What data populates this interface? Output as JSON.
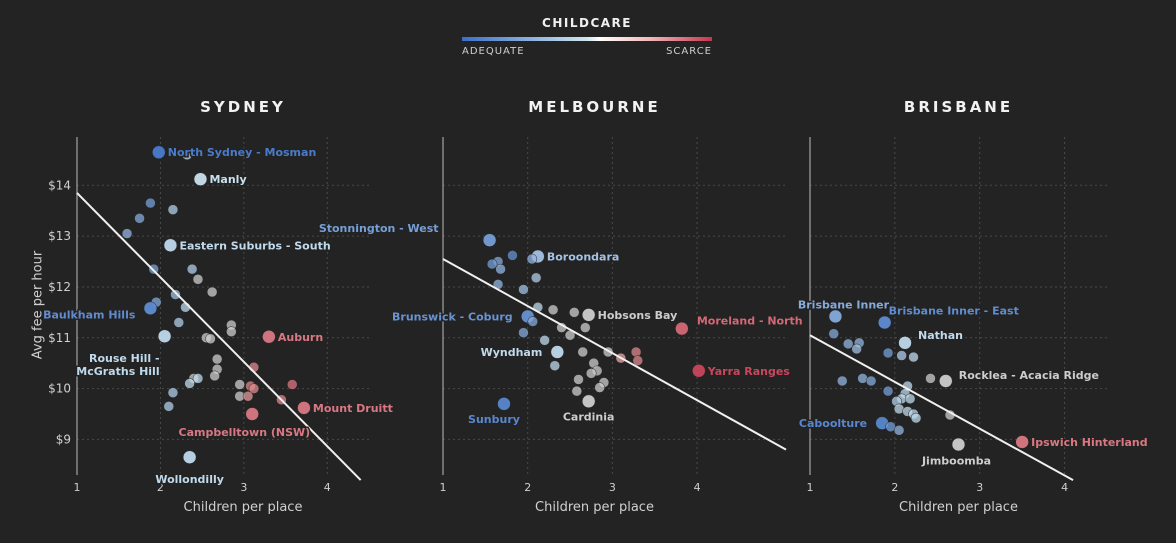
{
  "legend": {
    "title": "CHILDCARE",
    "low": "ADEQUATE",
    "high": "SCARCE",
    "low_color": "#3b6fc7",
    "mid_color": "#cfe6f0",
    "high_color": "#c43650"
  },
  "ylabel": "Avg fee per hour",
  "xlabel": "Children per place",
  "chart_data": [
    {
      "type": "scatter",
      "title": "SYDNEY",
      "xlabel": "Children per place",
      "ylabel": "Avg fee per hour",
      "xlim": [
        1,
        4.5
      ],
      "ylim": [
        8.3,
        14.95
      ],
      "xticks": [
        1,
        2,
        3,
        4
      ],
      "yticks": [
        9,
        10,
        11,
        12,
        13,
        14
      ],
      "ytick_labels": [
        "$9",
        "$10",
        "$11",
        "$12",
        "$13",
        "$14"
      ],
      "trend": [
        [
          1,
          13.85
        ],
        [
          4.4,
          8.2
        ]
      ],
      "points": [
        {
          "x": 1.98,
          "y": 14.65,
          "s": 0.05,
          "label": "North Sydney - Mosman",
          "big": true
        },
        {
          "x": 2.32,
          "y": 14.6,
          "s": 0.45
        },
        {
          "x": 2.48,
          "y": 14.12,
          "s": 0.48,
          "label": "Manly",
          "big": true
        },
        {
          "x": 1.88,
          "y": 13.65,
          "s": 0.2
        },
        {
          "x": 2.15,
          "y": 13.52,
          "s": 0.4
        },
        {
          "x": 1.75,
          "y": 13.35,
          "s": 0.25
        },
        {
          "x": 1.6,
          "y": 13.05,
          "s": 0.3
        },
        {
          "x": 2.12,
          "y": 12.82,
          "s": 0.45,
          "label": "Eastern Suburbs - South",
          "big": true
        },
        {
          "x": 1.92,
          "y": 12.35,
          "s": 0.22
        },
        {
          "x": 2.38,
          "y": 12.35,
          "s": 0.4
        },
        {
          "x": 2.45,
          "y": 12.15,
          "s": 0.5
        },
        {
          "x": 2.62,
          "y": 11.9,
          "s": 0.55
        },
        {
          "x": 2.18,
          "y": 11.85,
          "s": 0.35
        },
        {
          "x": 1.95,
          "y": 11.7,
          "s": 0.25
        },
        {
          "x": 2.3,
          "y": 11.6,
          "s": 0.45
        },
        {
          "x": 1.88,
          "y": 11.58,
          "s": 0.12,
          "label": "Baulkham Hills",
          "big": true,
          "anchor": "left",
          "dx": -6,
          "dy": 6
        },
        {
          "x": 2.22,
          "y": 11.3,
          "s": 0.4
        },
        {
          "x": 2.85,
          "y": 11.25,
          "s": 0.55
        },
        {
          "x": 2.85,
          "y": 11.12,
          "s": 0.55
        },
        {
          "x": 2.05,
          "y": 11.03,
          "s": 0.45,
          "label": "Rouse Hill -\nMcGraths Hill",
          "big": true,
          "anchor": "left",
          "dx": 4,
          "dy": 22
        },
        {
          "x": 2.55,
          "y": 11.0,
          "s": 0.55
        },
        {
          "x": 2.6,
          "y": 10.98,
          "s": 0.55
        },
        {
          "x": 3.3,
          "y": 11.02,
          "s": 0.8,
          "label": "Auburn",
          "big": true
        },
        {
          "x": 2.68,
          "y": 10.58,
          "s": 0.55
        },
        {
          "x": 2.68,
          "y": 10.38,
          "s": 0.55
        },
        {
          "x": 3.12,
          "y": 10.42,
          "s": 0.75
        },
        {
          "x": 2.65,
          "y": 10.25,
          "s": 0.55
        },
        {
          "x": 2.4,
          "y": 10.2,
          "s": 0.5
        },
        {
          "x": 2.45,
          "y": 10.2,
          "s": 0.45
        },
        {
          "x": 2.35,
          "y": 10.1,
          "s": 0.45
        },
        {
          "x": 2.95,
          "y": 10.08,
          "s": 0.6
        },
        {
          "x": 3.08,
          "y": 10.05,
          "s": 0.75
        },
        {
          "x": 3.12,
          "y": 10.0,
          "s": 0.75
        },
        {
          "x": 3.58,
          "y": 10.08,
          "s": 0.8
        },
        {
          "x": 2.95,
          "y": 9.85,
          "s": 0.6
        },
        {
          "x": 3.05,
          "y": 9.85,
          "s": 0.7
        },
        {
          "x": 3.45,
          "y": 9.78,
          "s": 0.75
        },
        {
          "x": 2.15,
          "y": 9.92,
          "s": 0.4
        },
        {
          "x": 2.1,
          "y": 9.65,
          "s": 0.4
        },
        {
          "x": 3.72,
          "y": 9.62,
          "s": 0.8,
          "label": "Mount Druitt",
          "big": true
        },
        {
          "x": 3.1,
          "y": 9.5,
          "s": 0.8,
          "label": "Campbelltown (NSW)",
          "big": true,
          "anchor": "right",
          "dx": 58,
          "dy": 18
        },
        {
          "x": 2.35,
          "y": 8.65,
          "s": 0.45,
          "label": "Wollondilly",
          "big": true,
          "anchor": "middle",
          "dx": 0,
          "dy": 22
        }
      ]
    },
    {
      "type": "scatter",
      "title": "MELBOURNE",
      "xlabel": "Children per place",
      "ylabel": "Avg fee per hour",
      "xlim": [
        1,
        5.05
      ],
      "ylim": [
        8.3,
        14.95
      ],
      "xticks": [
        1,
        2,
        3,
        4
      ],
      "yticks": [
        9,
        10,
        11,
        12,
        13,
        14
      ],
      "trend": [
        [
          1,
          12.55
        ],
        [
          5.05,
          8.8
        ]
      ],
      "points": [
        {
          "x": 1.55,
          "y": 12.92,
          "s": 0.2,
          "label": "Stonnington - West",
          "big": true,
          "anchor": "left",
          "dx": -42,
          "dy": -12
        },
        {
          "x": 1.82,
          "y": 12.62,
          "s": 0.15
        },
        {
          "x": 2.12,
          "y": 12.6,
          "s": 0.35,
          "label": "Boroondara",
          "big": true
        },
        {
          "x": 2.05,
          "y": 12.55,
          "s": 0.3
        },
        {
          "x": 1.65,
          "y": 12.5,
          "s": 0.25
        },
        {
          "x": 1.58,
          "y": 12.45,
          "s": 0.2
        },
        {
          "x": 1.68,
          "y": 12.35,
          "s": 0.3
        },
        {
          "x": 2.1,
          "y": 12.18,
          "s": 0.4
        },
        {
          "x": 1.65,
          "y": 12.05,
          "s": 0.3
        },
        {
          "x": 1.95,
          "y": 11.95,
          "s": 0.35
        },
        {
          "x": 2.12,
          "y": 11.6,
          "s": 0.45
        },
        {
          "x": 2.3,
          "y": 11.55,
          "s": 0.5
        },
        {
          "x": 2.55,
          "y": 11.5,
          "s": 0.55
        },
        {
          "x": 2.72,
          "y": 11.45,
          "s": 0.55,
          "label": "Hobsons Bay",
          "big": true
        },
        {
          "x": 2.0,
          "y": 11.42,
          "s": 0.15,
          "label": "Brunswick - Coburg",
          "big": true,
          "anchor": "left",
          "dx": -6,
          "dy": 0
        },
        {
          "x": 2.06,
          "y": 11.32,
          "s": 0.25
        },
        {
          "x": 2.4,
          "y": 11.2,
          "s": 0.5
        },
        {
          "x": 2.68,
          "y": 11.2,
          "s": 0.55
        },
        {
          "x": 1.95,
          "y": 11.1,
          "s": 0.25
        },
        {
          "x": 2.5,
          "y": 11.05,
          "s": 0.55
        },
        {
          "x": 2.2,
          "y": 10.95,
          "s": 0.45
        },
        {
          "x": 3.82,
          "y": 11.18,
          "s": 0.85,
          "label": "Moreland - North",
          "big": true,
          "dx": 6,
          "dy": -8
        },
        {
          "x": 2.35,
          "y": 10.72,
          "s": 0.45,
          "label": "Wyndham",
          "big": true,
          "anchor": "left",
          "dx": -6,
          "dy": 0
        },
        {
          "x": 2.65,
          "y": 10.72,
          "s": 0.55
        },
        {
          "x": 2.95,
          "y": 10.72,
          "s": 0.6
        },
        {
          "x": 3.28,
          "y": 10.72,
          "s": 0.75
        },
        {
          "x": 3.1,
          "y": 10.6,
          "s": 0.65
        },
        {
          "x": 3.3,
          "y": 10.55,
          "s": 0.75
        },
        {
          "x": 2.78,
          "y": 10.5,
          "s": 0.55
        },
        {
          "x": 2.32,
          "y": 10.45,
          "s": 0.45
        },
        {
          "x": 2.82,
          "y": 10.35,
          "s": 0.55
        },
        {
          "x": 2.75,
          "y": 10.3,
          "s": 0.55
        },
        {
          "x": 2.6,
          "y": 10.18,
          "s": 0.55
        },
        {
          "x": 2.9,
          "y": 10.12,
          "s": 0.6
        },
        {
          "x": 2.85,
          "y": 10.02,
          "s": 0.55
        },
        {
          "x": 2.58,
          "y": 9.95,
          "s": 0.55
        },
        {
          "x": 4.02,
          "y": 10.35,
          "s": 0.95,
          "label": "Yarra Ranges",
          "big": true
        },
        {
          "x": 1.72,
          "y": 9.7,
          "s": 0.1,
          "label": "Sunbury",
          "big": true,
          "anchor": "middle",
          "dx": -10,
          "dy": 15
        },
        {
          "x": 2.72,
          "y": 9.75,
          "s": 0.55,
          "label": "Cardinia",
          "big": true,
          "anchor": "middle",
          "dx": 0,
          "dy": 15
        }
      ]
    },
    {
      "type": "scatter",
      "title": "BRISBANE",
      "xlabel": "Children per place",
      "ylabel": "Avg fee per hour",
      "xlim": [
        1,
        4.5
      ],
      "ylim": [
        8.3,
        14.95
      ],
      "xticks": [
        1,
        2,
        3,
        4
      ],
      "yticks": [
        9,
        10,
        11,
        12,
        13,
        14
      ],
      "trend": [
        [
          1,
          11.05
        ],
        [
          4.1,
          8.2
        ]
      ],
      "points": [
        {
          "x": 1.3,
          "y": 11.42,
          "s": 0.25,
          "label": "Brisbane Inner",
          "big": true,
          "anchor": "middle",
          "dx": 8,
          "dy": -12
        },
        {
          "x": 1.88,
          "y": 11.3,
          "s": 0.12,
          "label": "Brisbane Inner - East",
          "big": true,
          "anchor": "start",
          "dx": 4,
          "dy": -12
        },
        {
          "x": 1.28,
          "y": 11.08,
          "s": 0.25
        },
        {
          "x": 2.12,
          "y": 10.9,
          "s": 0.45,
          "label": "Nathan",
          "big": true,
          "dx": 4,
          "dy": -8
        },
        {
          "x": 1.45,
          "y": 10.88,
          "s": 0.3
        },
        {
          "x": 1.58,
          "y": 10.9,
          "s": 0.3
        },
        {
          "x": 1.55,
          "y": 10.78,
          "s": 0.35
        },
        {
          "x": 1.92,
          "y": 10.7,
          "s": 0.2
        },
        {
          "x": 2.08,
          "y": 10.65,
          "s": 0.4
        },
        {
          "x": 2.22,
          "y": 10.62,
          "s": 0.45
        },
        {
          "x": 1.38,
          "y": 10.15,
          "s": 0.3
        },
        {
          "x": 1.62,
          "y": 10.2,
          "s": 0.3
        },
        {
          "x": 1.72,
          "y": 10.15,
          "s": 0.25
        },
        {
          "x": 2.42,
          "y": 10.2,
          "s": 0.5
        },
        {
          "x": 2.6,
          "y": 10.15,
          "s": 0.6,
          "label": "Rocklea - Acacia Ridge",
          "big": true,
          "dx": 4,
          "dy": -6
        },
        {
          "x": 2.15,
          "y": 10.05,
          "s": 0.45
        },
        {
          "x": 1.92,
          "y": 9.95,
          "s": 0.2
        },
        {
          "x": 2.12,
          "y": 9.9,
          "s": 0.45
        },
        {
          "x": 2.08,
          "y": 9.8,
          "s": 0.45
        },
        {
          "x": 2.02,
          "y": 9.75,
          "s": 0.4
        },
        {
          "x": 2.18,
          "y": 9.8,
          "s": 0.45
        },
        {
          "x": 2.05,
          "y": 9.6,
          "s": 0.45
        },
        {
          "x": 2.15,
          "y": 9.55,
          "s": 0.45
        },
        {
          "x": 2.22,
          "y": 9.5,
          "s": 0.45
        },
        {
          "x": 2.25,
          "y": 9.42,
          "s": 0.45
        },
        {
          "x": 2.65,
          "y": 9.48,
          "s": 0.55
        },
        {
          "x": 1.85,
          "y": 9.32,
          "s": 0.1,
          "label": "Caboolture",
          "big": true,
          "anchor": "left",
          "dx": -6,
          "dy": 0
        },
        {
          "x": 1.95,
          "y": 9.25,
          "s": 0.2
        },
        {
          "x": 2.05,
          "y": 9.18,
          "s": 0.3
        },
        {
          "x": 2.75,
          "y": 8.9,
          "s": 0.55,
          "label": "Jimboomba",
          "big": true,
          "anchor": "middle",
          "dx": -2,
          "dy": 16
        },
        {
          "x": 3.5,
          "y": 8.95,
          "s": 0.8,
          "label": "Ipswich Hinterland",
          "big": true
        }
      ]
    }
  ]
}
